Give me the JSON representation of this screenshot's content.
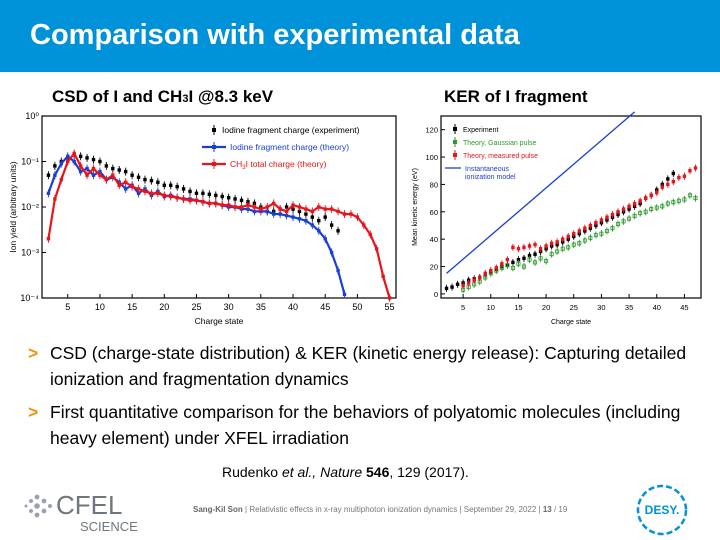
{
  "header": {
    "title": "Comparison with experimental data"
  },
  "panels": {
    "left_title_pre": "CSD of I and CH",
    "left_title_sub": "3",
    "left_title_post": "I @8.3 keV",
    "right_title": "KER of I fragment"
  },
  "bullets": [
    {
      "marker": ">",
      "text": "CSD (charge-state distribution) & KER (kinetic energy release): Capturing detailed ionization and fragmentation dynamics"
    },
    {
      "marker": ">",
      "text": "First quantitative comparison for the behaviors of polyatomic molecules (including heavy element) under XFEL irradiation"
    }
  ],
  "citation": {
    "authors": "Rudenko ",
    "etal": "et al., ",
    "journal": "Nature",
    "volume": " 546",
    "pages": ", 129 (2017)."
  },
  "footer": {
    "author": "Sang-Kil Son",
    "talk": "Relativistic effects in x-ray multiphoton ionization dynamics",
    "date": "September 29, 2022",
    "page": "13",
    "total": "19"
  },
  "logos": {
    "cfel_top": "CFEL",
    "cfel_bottom": "SCIENCE",
    "desy": "DESY."
  },
  "colors": {
    "accent": "#0092d8",
    "bullet": "#f39200",
    "theory_blue": "#1a3fd4",
    "theory_red": "#e8141b",
    "gaussian_green": "#2a9a2a"
  },
  "chart_data": [
    {
      "type": "line",
      "xlabel": "Charge state",
      "ylabel": "Ion yield  (arbitrary units)",
      "y_scale": "log",
      "xlim": [
        1,
        56
      ],
      "ylim": [
        0.0001,
        1
      ],
      "xticks": [
        5,
        10,
        15,
        20,
        25,
        30,
        35,
        40,
        45,
        50,
        55
      ],
      "yticks": [
        {
          "v": 1,
          "t": "10⁰"
        },
        {
          "v": 0.1,
          "t": "10⁻¹"
        },
        {
          "v": 0.01,
          "t": "10⁻²"
        },
        {
          "v": 0.001,
          "t": "10⁻³"
        },
        {
          "v": 0.0001,
          "t": "10⁻⁴"
        }
      ],
      "legend_position": "top-right",
      "series": [
        {
          "name": "Iodine fragment charge (experiment)",
          "color": "#000000",
          "style": "markers",
          "x": [
            2,
            3,
            4,
            5,
            6,
            7,
            8,
            9,
            10,
            11,
            12,
            13,
            14,
            15,
            16,
            17,
            18,
            19,
            20,
            21,
            22,
            23,
            24,
            25,
            26,
            27,
            28,
            29,
            30,
            31,
            32,
            33,
            34,
            35,
            36,
            37,
            38,
            39,
            40,
            41,
            42,
            43,
            44,
            45,
            46,
            47
          ],
          "y": [
            0.05,
            0.08,
            0.1,
            0.12,
            0.14,
            0.13,
            0.12,
            0.11,
            0.1,
            0.08,
            0.07,
            0.065,
            0.06,
            0.05,
            0.045,
            0.04,
            0.038,
            0.035,
            0.03,
            0.03,
            0.028,
            0.025,
            0.022,
            0.02,
            0.02,
            0.019,
            0.018,
            0.017,
            0.016,
            0.015,
            0.014,
            0.013,
            0.012,
            0.01,
            0.008,
            0.008,
            0.009,
            0.01,
            0.009,
            0.008,
            0.007,
            0.006,
            0.005,
            0.006,
            0.004,
            0.003
          ]
        },
        {
          "name": "Iodine fragment charge (theory)",
          "color": "#1a3fd4",
          "style": "line-markers",
          "x": [
            2,
            3,
            4,
            5,
            6,
            7,
            8,
            9,
            10,
            11,
            12,
            13,
            14,
            15,
            16,
            17,
            18,
            19,
            20,
            21,
            22,
            23,
            24,
            25,
            26,
            27,
            28,
            29,
            30,
            31,
            32,
            33,
            34,
            35,
            36,
            37,
            38,
            39,
            40,
            41,
            42,
            43,
            44,
            45,
            46,
            47,
            48
          ],
          "y": [
            0.02,
            0.05,
            0.09,
            0.13,
            0.1,
            0.06,
            0.07,
            0.05,
            0.06,
            0.04,
            0.045,
            0.035,
            0.025,
            0.03,
            0.02,
            0.025,
            0.018,
            0.022,
            0.017,
            0.018,
            0.016,
            0.015,
            0.015,
            0.014,
            0.013,
            0.012,
            0.012,
            0.011,
            0.01,
            0.01,
            0.009,
            0.009,
            0.008,
            0.008,
            0.008,
            0.007,
            0.007,
            0.0065,
            0.006,
            0.0055,
            0.005,
            0.004,
            0.003,
            0.002,
            0.001,
            0.0004,
            0.00012
          ]
        },
        {
          "name": "CH3I total charge (theory)",
          "color": "#e8141b",
          "style": "line-markers",
          "x": [
            2,
            3,
            4,
            5,
            6,
            7,
            8,
            9,
            10,
            11,
            12,
            13,
            14,
            15,
            16,
            17,
            18,
            19,
            20,
            21,
            22,
            23,
            24,
            25,
            26,
            27,
            28,
            29,
            30,
            31,
            32,
            33,
            34,
            35,
            36,
            37,
            38,
            39,
            40,
            41,
            42,
            43,
            44,
            45,
            46,
            47,
            48,
            49,
            50,
            51,
            52,
            53,
            54,
            55
          ],
          "y": [
            0.002,
            0.015,
            0.04,
            0.1,
            0.15,
            0.08,
            0.05,
            0.07,
            0.05,
            0.04,
            0.05,
            0.03,
            0.035,
            0.028,
            0.025,
            0.022,
            0.02,
            0.02,
            0.018,
            0.017,
            0.016,
            0.015,
            0.014,
            0.014,
            0.013,
            0.012,
            0.012,
            0.011,
            0.011,
            0.01,
            0.01,
            0.011,
            0.01,
            0.009,
            0.01,
            0.012,
            0.009,
            0.008,
            0.011,
            0.01,
            0.009,
            0.008,
            0.01,
            0.009,
            0.009,
            0.008,
            0.007,
            0.007,
            0.006,
            0.004,
            0.0025,
            0.0012,
            0.0003,
            0.0001
          ]
        }
      ]
    },
    {
      "type": "scatter",
      "xlabel": "Charge state",
      "ylabel": "Mean kinetic energy (eV)",
      "xlim": [
        1,
        48
      ],
      "ylim": [
        -3,
        130
      ],
      "xticks": [
        5,
        10,
        15,
        20,
        25,
        30,
        35,
        40,
        45
      ],
      "yticks": [
        0,
        20,
        40,
        60,
        80,
        100,
        120
      ],
      "legend_position": "top-left",
      "series": [
        {
          "name": "Experiment",
          "color": "#000000",
          "style": "markers",
          "x": [
            2,
            3,
            4,
            5,
            6,
            7,
            8,
            9,
            10,
            11,
            12,
            13,
            14,
            15,
            16,
            17,
            18,
            19,
            20,
            21,
            22,
            23,
            24,
            25,
            26,
            27,
            28,
            29,
            30,
            31,
            32,
            33,
            34,
            35,
            36,
            37,
            38,
            39,
            40,
            41,
            42,
            43
          ],
          "y": [
            4,
            5,
            7,
            8,
            10,
            11,
            12,
            14,
            16,
            18,
            20,
            21,
            23,
            25,
            26,
            28,
            29,
            31,
            33,
            35,
            36,
            38,
            40,
            42,
            44,
            46,
            48,
            50,
            52,
            54,
            56,
            58,
            60,
            62,
            64,
            66,
            70,
            72,
            76,
            80,
            84,
            88
          ]
        },
        {
          "name": "Theory, Gaussian pulse",
          "color": "#2a9a2a",
          "style": "markers",
          "x": [
            5,
            6,
            7,
            8,
            9,
            10,
            11,
            12,
            13,
            14,
            15,
            16,
            17,
            18,
            19,
            20,
            21,
            22,
            23,
            24,
            25,
            26,
            27,
            28,
            29,
            30,
            31,
            32,
            33,
            34,
            35,
            36,
            37,
            38,
            39,
            40,
            41,
            42,
            43,
            44,
            45,
            46,
            47
          ],
          "y": [
            3,
            5,
            7,
            9,
            12,
            15,
            17,
            19,
            21,
            19,
            22,
            20,
            25,
            23,
            26,
            24,
            29,
            31,
            33,
            34,
            36,
            37,
            39,
            41,
            43,
            44,
            46,
            48,
            51,
            53,
            55,
            57,
            59,
            60,
            62,
            63,
            64,
            66,
            67,
            68,
            69,
            72,
            70
          ]
        },
        {
          "name": "Theory, measured pulse",
          "color": "#e8141b",
          "style": "markers",
          "x": [
            5,
            6,
            7,
            8,
            9,
            10,
            11,
            12,
            13,
            14,
            15,
            16,
            17,
            18,
            19,
            20,
            21,
            22,
            23,
            24,
            25,
            26,
            27,
            28,
            29,
            30,
            31,
            32,
            33,
            34,
            35,
            36,
            37,
            38,
            39,
            40,
            41,
            42,
            43,
            44,
            45,
            46,
            47
          ],
          "y": [
            6,
            8,
            10,
            12,
            15,
            17,
            19,
            22,
            25,
            34,
            33,
            34,
            35,
            36,
            33,
            35,
            37,
            38,
            40,
            42,
            44,
            46,
            48,
            50,
            52,
            54,
            56,
            58,
            60,
            62,
            64,
            66,
            68,
            70,
            72,
            74,
            78,
            80,
            82,
            85,
            86,
            90,
            92
          ]
        },
        {
          "name": "Instantaneous ionization model",
          "color": "#1a3fd4",
          "style": "line",
          "x": [
            2,
            36
          ],
          "y": [
            15,
            133
          ]
        }
      ]
    }
  ]
}
